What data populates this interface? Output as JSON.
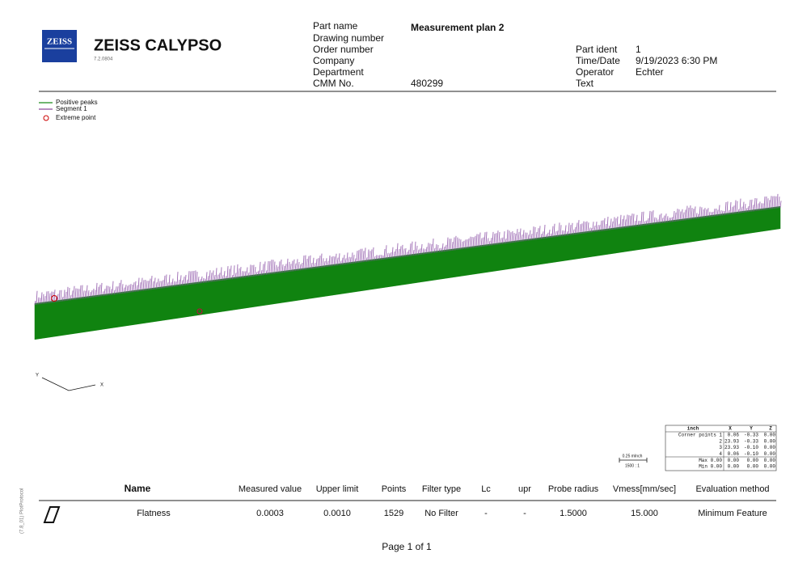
{
  "header": {
    "logo": "ZEISS",
    "product": "ZEISS  CALYPSO",
    "version": "7.2.0804",
    "fields_left": [
      {
        "label": "Part name",
        "value": "Measurement plan 2"
      },
      {
        "label": "Drawing number"
      },
      {
        "label": "Order number"
      },
      {
        "label": "Company"
      },
      {
        "label": "Department"
      },
      {
        "label": "CMM No.",
        "value": "480299"
      }
    ],
    "fields_right": [
      {
        "label": "Part ident",
        "value": "1"
      },
      {
        "label": "Time/Date",
        "value": "9/19/2023 6:30 PM"
      },
      {
        "label": "Operator",
        "value": "Echter"
      },
      {
        "label": "Text"
      }
    ]
  },
  "legend": [
    "Positive peaks",
    "Segment 1",
    "Extreme point"
  ],
  "axes": {
    "y": "Y",
    "x": "X"
  },
  "scale": {
    "length": "0.25 mInch",
    "ratio": "1500 : 1"
  },
  "corner_table": {
    "header": [
      "inch",
      "X",
      "Y",
      "Z"
    ],
    "rows": [
      [
        "Corner points 1",
        "0.06",
        "-0.33",
        "0.00"
      ],
      [
        "2",
        "23.93",
        "-0.33",
        "0.00"
      ],
      [
        "3",
        "23.93",
        "-0.10",
        "0.00"
      ],
      [
        "4",
        "0.06",
        "-0.10",
        "0.00"
      ],
      [
        "Max 0.00",
        "0.00",
        "0.00",
        "0.00"
      ],
      [
        "Min 0.00",
        "0.00",
        "0.00",
        "0.00"
      ]
    ]
  },
  "results": {
    "header": [
      "Name",
      "Measured value",
      "Upper limit",
      "Points",
      "Filter type",
      "Lc",
      "upr",
      "Probe radius",
      "Vmess[mm/sec]",
      "Evaluation method"
    ],
    "rows": [
      [
        "Flatness",
        "0.0003",
        "0.0010",
        "1529",
        "No Filter",
        "-",
        "-",
        "1.5000",
        "15.000",
        "Minimum Feature"
      ]
    ]
  },
  "footer": "Page 1 of 1",
  "side_note": "(7.8_01) PlotProtocol"
}
